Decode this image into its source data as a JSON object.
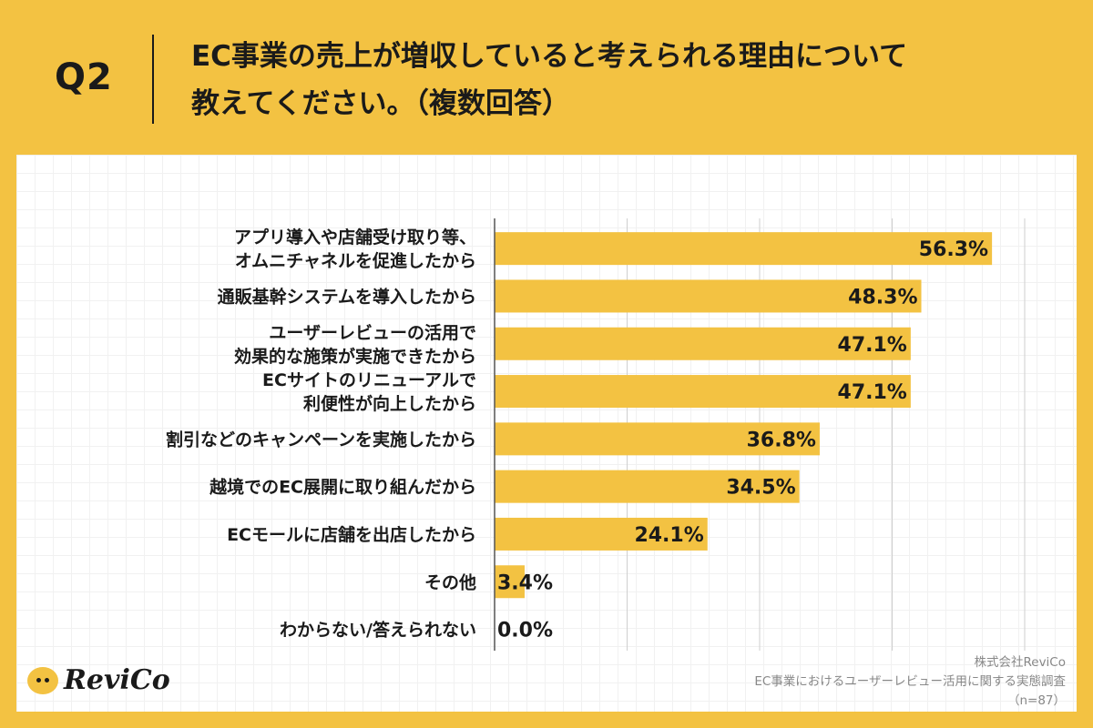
{
  "header": {
    "q_label": "Q2",
    "question_line1": "EC事業の売上が増収していると考えられる理由について",
    "question_line2": "教えてください。（複数回答）"
  },
  "chart_data": {
    "type": "bar",
    "orientation": "horizontal",
    "title": "",
    "xlim": [
      0,
      100
    ],
    "grid": true,
    "bar_color": "#f3c242",
    "categories": [
      [
        "アプリ導入や店舗受け取り等、",
        "オムニチャネルを促進したから"
      ],
      [
        "通販基幹システムを導入したから"
      ],
      [
        "ユーザーレビューの活用で",
        "効果的な施策が実施できたから"
      ],
      [
        "ECサイトのリニューアルで",
        "利便性が向上したから"
      ],
      [
        "割引などのキャンペーンを実施したから"
      ],
      [
        "越境でのEC展開に取り組んだから"
      ],
      [
        "ECモールに店舗を出店したから"
      ],
      [
        "その他"
      ],
      [
        "わからない/答えられない"
      ]
    ],
    "values": [
      56.3,
      48.3,
      47.1,
      47.1,
      36.8,
      34.5,
      24.1,
      3.4,
      0.0
    ],
    "value_labels": [
      "56.3%",
      "48.3%",
      "47.1%",
      "47.1%",
      "36.8%",
      "34.5%",
      "24.1%",
      "3.4%",
      "0.0%"
    ]
  },
  "brand": {
    "logo_name": "speech-bubble-face-icon",
    "logo_text": "ReviCo"
  },
  "footer": {
    "company": "株式会社ReviCo",
    "survey_title": "EC事業におけるユーザーレビュー活用に関する実態調査",
    "sample": "（n=87）"
  }
}
